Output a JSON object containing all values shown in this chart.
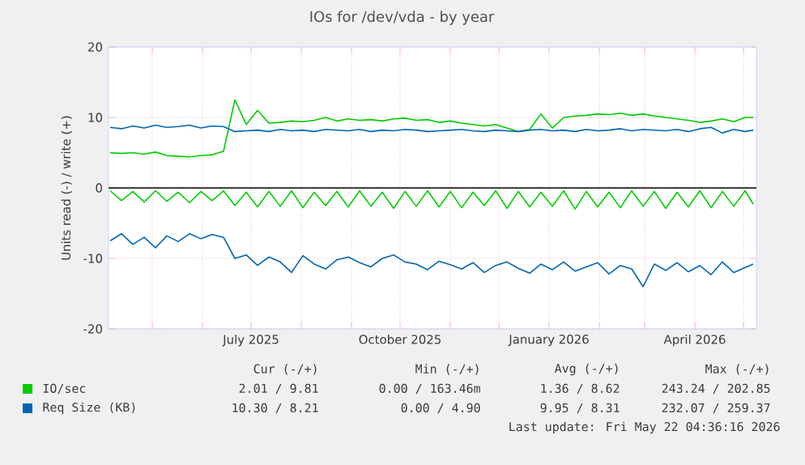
{
  "chart_data": {
    "type": "line",
    "title": "IOs for /dev/vda - by year",
    "ylabel": "Units read (-) / write (+)",
    "x": [
      "2025-04-05",
      "2025-04-12",
      "2025-04-19",
      "2025-04-26",
      "2025-05-03",
      "2025-05-10",
      "2025-05-17",
      "2025-05-24",
      "2025-05-31",
      "2025-06-07",
      "2025-06-14",
      "2025-06-21",
      "2025-06-28",
      "2025-07-05",
      "2025-07-12",
      "2025-07-19",
      "2025-07-26",
      "2025-08-02",
      "2025-08-09",
      "2025-08-16",
      "2025-08-23",
      "2025-08-30",
      "2025-09-06",
      "2025-09-13",
      "2025-09-20",
      "2025-09-27",
      "2025-10-04",
      "2025-10-11",
      "2025-10-18",
      "2025-10-25",
      "2025-11-01",
      "2025-11-08",
      "2025-11-15",
      "2025-11-22",
      "2025-11-29",
      "2025-12-06",
      "2025-12-13",
      "2025-12-20",
      "2025-12-27",
      "2026-01-03",
      "2026-01-10",
      "2026-01-17",
      "2026-01-24",
      "2026-01-31",
      "2026-02-07",
      "2026-02-14",
      "2026-02-21",
      "2026-02-28",
      "2026-03-07",
      "2026-03-14",
      "2026-03-21",
      "2026-03-28",
      "2026-04-04",
      "2026-04-11",
      "2026-04-18",
      "2026-04-25",
      "2026-05-02",
      "2026-05-07"
    ],
    "series": [
      {
        "name": "IO/sec",
        "color": "#00cc00",
        "values": [
          5.0,
          4.9,
          5.0,
          4.8,
          5.1,
          4.6,
          4.5,
          4.4,
          4.6,
          4.7,
          5.2,
          12.5,
          9.0,
          11.0,
          9.2,
          9.3,
          9.5,
          9.4,
          9.6,
          10.0,
          9.5,
          9.8,
          9.6,
          9.7,
          9.5,
          9.8,
          9.9,
          9.6,
          9.7,
          9.3,
          9.5,
          9.2,
          9.0,
          8.8,
          9.0,
          8.5,
          8.0,
          8.3,
          10.5,
          8.5,
          10.0,
          10.2,
          10.3,
          10.5,
          10.4,
          10.6,
          10.3,
          10.5,
          10.2,
          10.0,
          9.8,
          9.6,
          9.3,
          9.5,
          9.8,
          9.4,
          10.0,
          10.0
        ]
      },
      {
        "color": "#00cc00",
        "values": [
          -0.4,
          -1.8,
          -0.5,
          -2.0,
          -0.4,
          -1.9,
          -0.6,
          -2.1,
          -0.5,
          -1.8,
          -0.4,
          -2.5,
          -0.6,
          -2.7,
          -0.5,
          -2.6,
          -0.4,
          -2.8,
          -0.6,
          -2.5,
          -0.5,
          -2.7,
          -0.4,
          -2.6,
          -0.6,
          -2.9,
          -0.5,
          -2.6,
          -0.4,
          -2.7,
          -0.5,
          -2.8,
          -0.6,
          -2.5,
          -0.4,
          -2.9,
          -0.5,
          -2.7,
          -0.6,
          -2.6,
          -0.4,
          -3.0,
          -0.5,
          -2.7,
          -0.6,
          -2.8,
          -0.4,
          -2.6,
          -0.5,
          -2.9,
          -0.6,
          -2.7,
          -0.4,
          -2.8,
          -0.5,
          -2.6,
          -0.4,
          -2.3
        ]
      },
      {
        "name": "Req Size (KB)",
        "color": "#0066b3",
        "values": [
          8.6,
          8.4,
          8.8,
          8.5,
          8.9,
          8.6,
          8.7,
          8.9,
          8.5,
          8.8,
          8.7,
          8.0,
          8.1,
          8.2,
          8.0,
          8.3,
          8.1,
          8.2,
          8.0,
          8.3,
          8.2,
          8.1,
          8.3,
          8.0,
          8.2,
          8.1,
          8.3,
          8.2,
          8.0,
          8.1,
          8.2,
          8.3,
          8.1,
          8.0,
          8.2,
          8.1,
          8.0,
          8.2,
          8.3,
          8.1,
          8.2,
          8.0,
          8.3,
          8.1,
          8.2,
          8.4,
          8.1,
          8.3,
          8.2,
          8.1,
          8.3,
          8.0,
          8.4,
          8.6,
          7.8,
          8.3,
          8.0,
          8.2
        ]
      },
      {
        "color": "#0066b3",
        "values": [
          -7.5,
          -6.5,
          -8.0,
          -7.0,
          -8.5,
          -6.8,
          -7.6,
          -6.5,
          -7.2,
          -6.6,
          -7.0,
          -10.0,
          -9.5,
          -11.0,
          -9.8,
          -10.5,
          -12.0,
          -9.6,
          -10.8,
          -11.5,
          -10.2,
          -9.8,
          -10.6,
          -11.2,
          -10.0,
          -9.5,
          -10.5,
          -10.8,
          -11.6,
          -10.4,
          -10.9,
          -11.5,
          -10.6,
          -12.0,
          -11.0,
          -10.5,
          -11.4,
          -12.1,
          -10.8,
          -11.6,
          -10.5,
          -11.8,
          -11.2,
          -10.6,
          -12.2,
          -11.0,
          -11.5,
          -14.0,
          -10.8,
          -11.7,
          -10.6,
          -11.9,
          -11.0,
          -12.3,
          -10.5,
          -12.0,
          -11.3,
          -10.8
        ]
      }
    ],
    "xlim": [
      "2025-04-04",
      "2026-05-09"
    ],
    "xticks": [
      {
        "value": "2025-05-01",
        "label": null
      },
      {
        "value": "2025-06-01",
        "label": null
      },
      {
        "value": "2025-07-01",
        "label": "July 2025"
      },
      {
        "value": "2025-08-01",
        "label": null
      },
      {
        "value": "2025-09-01",
        "label": null
      },
      {
        "value": "2025-10-01",
        "label": "October 2025"
      },
      {
        "value": "2025-11-01",
        "label": null
      },
      {
        "value": "2025-12-01",
        "label": null
      },
      {
        "value": "2026-01-01",
        "label": "January 2026"
      },
      {
        "value": "2026-02-01",
        "label": null
      },
      {
        "value": "2026-03-01",
        "label": null
      },
      {
        "value": "2026-04-01",
        "label": "April 2026"
      },
      {
        "value": "2026-05-01",
        "label": null
      }
    ],
    "ylim": [
      -20,
      20
    ],
    "yticks": [
      -20,
      -10,
      0,
      10,
      20
    ],
    "ref_lines": [
      {
        "axis": "y",
        "value": 0,
        "color": "#000000"
      }
    ],
    "grid": true,
    "legend": "bottom left",
    "annotations": [
      "Cur (-/+)",
      "Min (-/+)",
      "Avg (-/+)",
      "Max (-/+)",
      "2.01 / 9.81",
      "0.00 / 163.46m",
      "1.36 / 8.62",
      "243.24 / 202.85",
      "10.30 / 8.21",
      "0.00 / 4.90",
      "9.95 / 8.31",
      "232.07 / 259.37",
      "Last update: Fri May 22 04:36:16 2026"
    ]
  }
}
